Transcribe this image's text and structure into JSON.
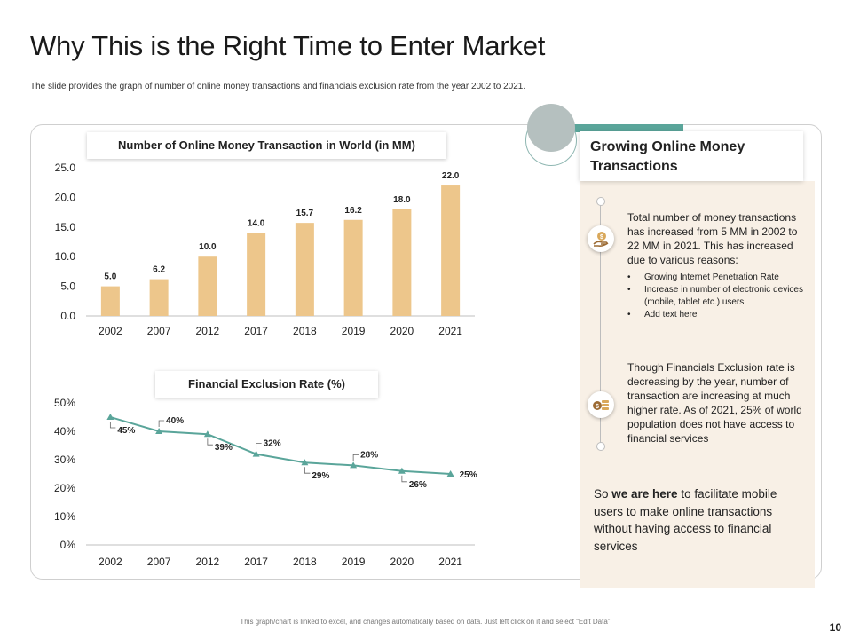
{
  "title": "Why This is the Right Time to Enter Market",
  "subtitle": "The slide provides the graph of number of online money transactions  and financials  exclusion rate from the year 2002 to 2021.",
  "colors": {
    "bar": "#edc68b",
    "line": "#5aa59a",
    "accent": "#5aa59a",
    "panel_bg": "#f8f0e6"
  },
  "chart_data": [
    {
      "type": "bar",
      "title": "Number of Online Money Transaction in World (in MM)",
      "categories": [
        "2002",
        "2007",
        "2012",
        "2017",
        "2018",
        "2019",
        "2020",
        "2021"
      ],
      "values": [
        5.0,
        6.2,
        10.0,
        14.0,
        15.7,
        16.2,
        18.0,
        22.0
      ],
      "value_labels": [
        "5.0",
        "6.2",
        "10.0",
        "14.0",
        "15.7",
        "16.2",
        "18.0",
        "22.0"
      ],
      "ylim": [
        0,
        25
      ],
      "yticks": [
        "0.0",
        "5.0",
        "10.0",
        "15.0",
        "20.0",
        "25.0"
      ],
      "xlabel": "",
      "ylabel": "",
      "grid": false
    },
    {
      "type": "line",
      "title": "Financial Exclusion Rate (%)",
      "categories": [
        "2002",
        "2007",
        "2012",
        "2017",
        "2018",
        "2019",
        "2020",
        "2021"
      ],
      "values": [
        45,
        40,
        39,
        32,
        29,
        28,
        26,
        25
      ],
      "value_labels": [
        "45%",
        "40%",
        "39%",
        "32%",
        "29%",
        "28%",
        "26%",
        "25%"
      ],
      "ylim": [
        0,
        50
      ],
      "yticks": [
        "0%",
        "10%",
        "20%",
        "30%",
        "40%",
        "50%"
      ],
      "xlabel": "",
      "ylabel": "",
      "grid": false
    }
  ],
  "right_panel": {
    "heading": "Growing Online Money Transactions",
    "block1": "Total number of money transactions has increased from 5 MM in 2002 to 22 MM in 2021. This has increased due to various reasons:",
    "bullets": [
      "Growing Internet Penetration Rate",
      "Increase in number of electronic devices (mobile, tablet etc.) users",
      "Add text here"
    ],
    "bullet_symbol": "•",
    "block2": "Though Financials Exclusion rate is decreasing by the year, number of transaction are increasing at much higher rate. As of 2021, 25% of world population does not have access to financial services",
    "icon1": "money-hand-icon",
    "icon2": "coins-icon",
    "closing_pre": "So ",
    "closing_bold": "we are here",
    "closing_post": " to facilitate mobile users to make online transactions without having access to financial services"
  },
  "footer": "This graph/chart is linked to excel, and changes automatically based on data. Just left click on it and select “Edit Data”.",
  "page_number": "10"
}
